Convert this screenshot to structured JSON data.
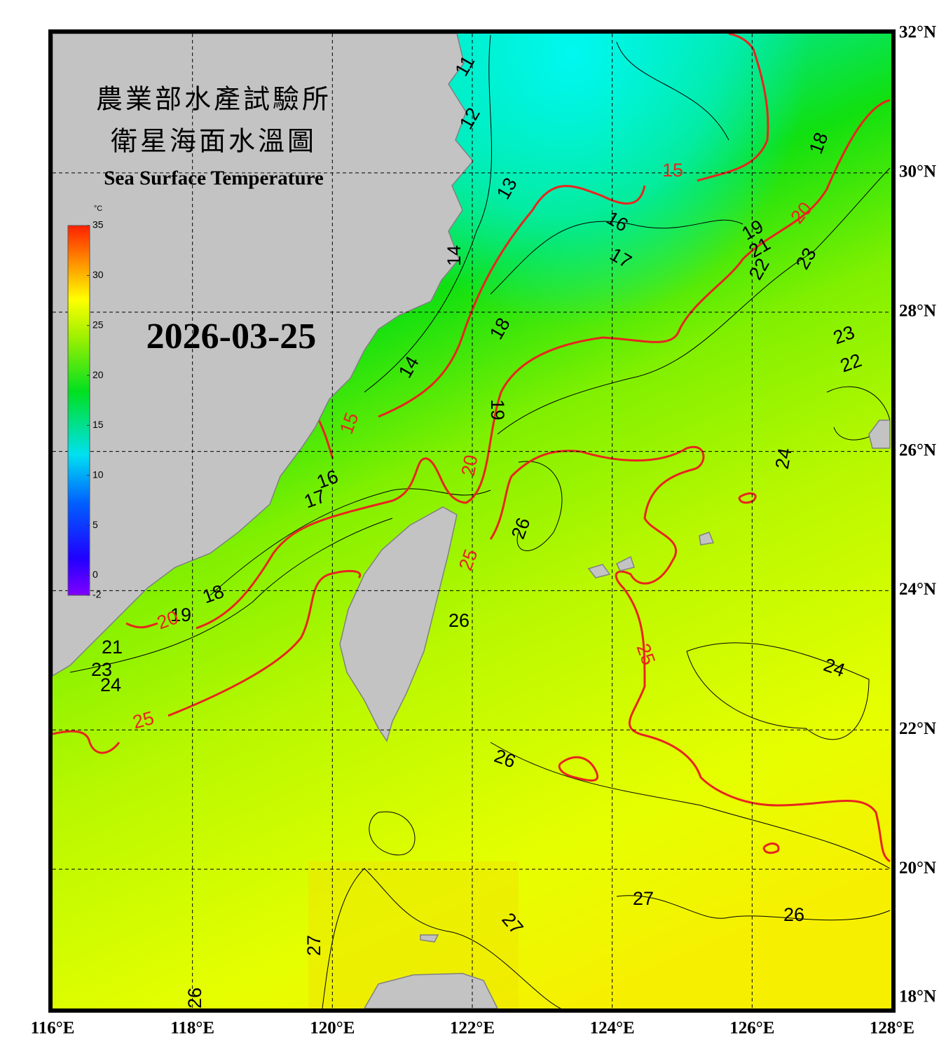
{
  "map": {
    "title_lines": [
      "農業部水產試驗所",
      "衛星海面水溫圖"
    ],
    "subtitle": "Sea Surface Temperature",
    "date": "2026-03-25",
    "lon_ticks": [
      {
        "value": 116,
        "label": "116°E"
      },
      {
        "value": 118,
        "label": "118°E"
      },
      {
        "value": 120,
        "label": "120°E"
      },
      {
        "value": 122,
        "label": "122°E"
      },
      {
        "value": 124,
        "label": "124°E"
      },
      {
        "value": 126,
        "label": "126°E"
      },
      {
        "value": 128,
        "label": "128°E"
      }
    ],
    "lat_ticks": [
      {
        "value": 32,
        "label": "32°N"
      },
      {
        "value": 30,
        "label": "30°N"
      },
      {
        "value": 28,
        "label": "28°N"
      },
      {
        "value": 26,
        "label": "26°N"
      },
      {
        "value": 24,
        "label": "24°N"
      },
      {
        "value": 22,
        "label": "22°N"
      },
      {
        "value": 20,
        "label": "20°N"
      },
      {
        "value": 18,
        "label": "18°N"
      }
    ],
    "colorbar": {
      "unit": "°C",
      "range": [
        -2,
        35
      ],
      "ticks": [
        35,
        30,
        25,
        20,
        15,
        10,
        5,
        0,
        -2
      ]
    },
    "contour_labels": [
      11,
      12,
      13,
      14,
      14,
      15,
      16,
      17,
      18,
      19,
      20,
      21,
      22,
      23,
      18,
      23,
      22,
      19,
      15,
      16,
      17,
      20,
      24,
      26,
      25,
      18,
      19,
      20,
      21,
      23,
      24,
      26,
      25,
      24,
      25,
      26,
      27,
      26,
      27,
      27,
      26
    ],
    "highlight_color": "#e8251e",
    "highlight_levels": [
      15,
      20,
      25
    ]
  }
}
